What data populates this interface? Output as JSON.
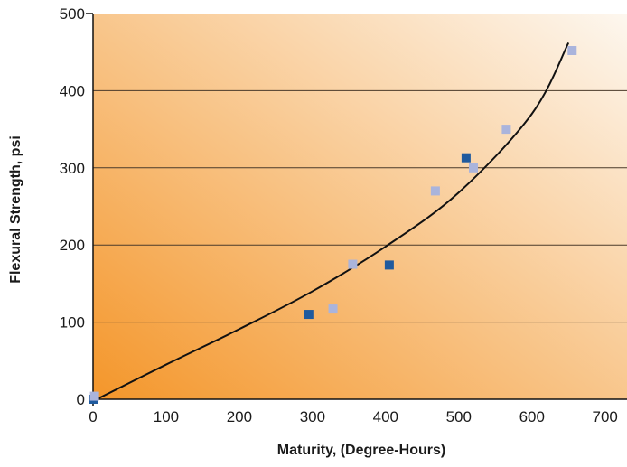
{
  "chart_data": {
    "type": "scatter",
    "xlabel": "Maturity, (Degree-Hours)",
    "ylabel": "Flexural Strength, psi",
    "xlim": [
      0,
      730
    ],
    "ylim": [
      0,
      500
    ],
    "x_ticks": [
      0,
      100,
      200,
      300,
      400,
      500,
      600,
      700
    ],
    "y_ticks": [
      0,
      100,
      200,
      300,
      400,
      500
    ],
    "grid": "horizontal",
    "legend": "none",
    "series": [
      {
        "color": "#1f5a9e",
        "marker": "square",
        "points": [
          {
            "x": 0,
            "y": 0
          },
          {
            "x": 295,
            "y": 110
          },
          {
            "x": 405,
            "y": 174
          },
          {
            "x": 510,
            "y": 313
          }
        ]
      },
      {
        "color": "#aab4dc",
        "marker": "square",
        "points": [
          {
            "x": 2,
            "y": 4
          },
          {
            "x": 328,
            "y": 117
          },
          {
            "x": 355,
            "y": 175
          },
          {
            "x": 468,
            "y": 270
          },
          {
            "x": 520,
            "y": 300
          },
          {
            "x": 565,
            "y": 350
          },
          {
            "x": 655,
            "y": 452
          }
        ]
      },
      {
        "type": "line",
        "color": "#111111",
        "points": [
          {
            "x": 5,
            "y": 0
          },
          {
            "x": 100,
            "y": 45
          },
          {
            "x": 200,
            "y": 91
          },
          {
            "x": 300,
            "y": 140
          },
          {
            "x": 400,
            "y": 198
          },
          {
            "x": 500,
            "y": 268
          },
          {
            "x": 600,
            "y": 370
          },
          {
            "x": 650,
            "y": 462
          }
        ]
      }
    ],
    "colors": {
      "gradient_dark": "#f4962a",
      "gradient_light": "#fdf7ef",
      "grid": "#4a3a2a",
      "axis": "#111111"
    }
  }
}
